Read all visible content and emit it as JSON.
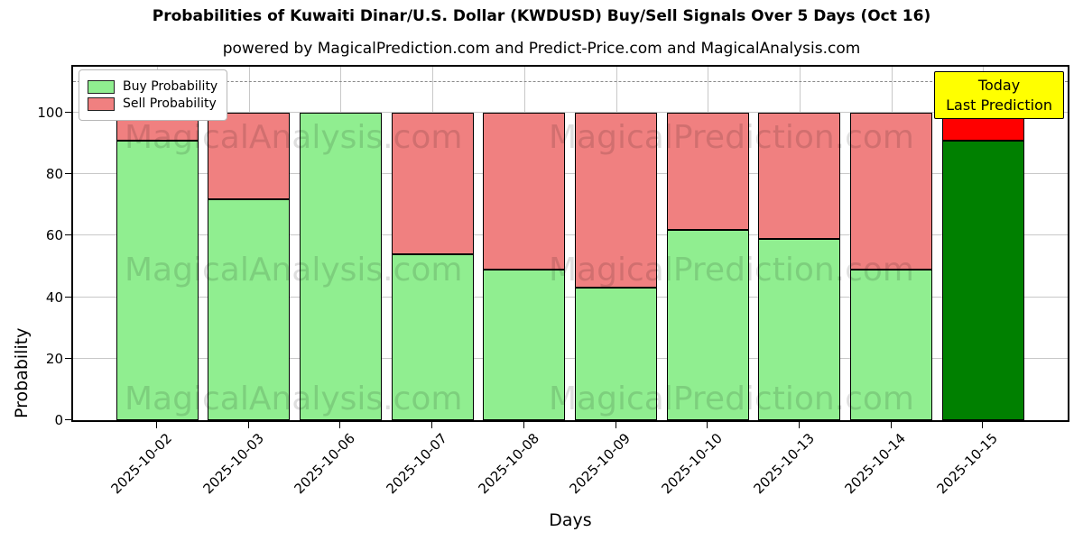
{
  "title": "Probabilities of Kuwaiti Dinar/U.S. Dollar (KWDUSD) Buy/Sell Signals Over 5 Days (Oct 16)",
  "subtitle": "powered by MagicalPrediction.com and Predict-Price.com and MagicalAnalysis.com",
  "annotation": {
    "line1": "Today",
    "line2": "Last Prediction"
  },
  "watermarks": {
    "left": "MagicalAnalysis.com",
    "right": "MagicalPrediction.com"
  },
  "chart_data": {
    "type": "bar",
    "stacked": true,
    "categories": [
      "2025-10-02",
      "2025-10-03",
      "2025-10-06",
      "2025-10-07",
      "2025-10-08",
      "2025-10-09",
      "2025-10-10",
      "2025-10-13",
      "2025-10-14",
      "2025-10-15"
    ],
    "series": [
      {
        "name": "Buy Probability",
        "color": "#90EE90",
        "values": [
          91,
          72,
          100,
          54,
          49,
          43,
          62,
          59,
          49,
          91
        ]
      },
      {
        "name": "Sell Probability",
        "color": "#F08080",
        "values": [
          9,
          28,
          0,
          46,
          51,
          57,
          38,
          41,
          51,
          9
        ]
      }
    ],
    "today": {
      "index": 9,
      "buy_color": "#008000",
      "sell_color": "#FF0000"
    },
    "xlabel": "Days",
    "ylabel": "Probability",
    "yticks": [
      0,
      20,
      40,
      60,
      80,
      100
    ],
    "ylim": [
      0,
      115
    ],
    "dashed_line_y": 110,
    "grid": true,
    "legend_position": "upper left",
    "bar_edge_color": "#000000",
    "grid_color": "#c8c8c8"
  }
}
